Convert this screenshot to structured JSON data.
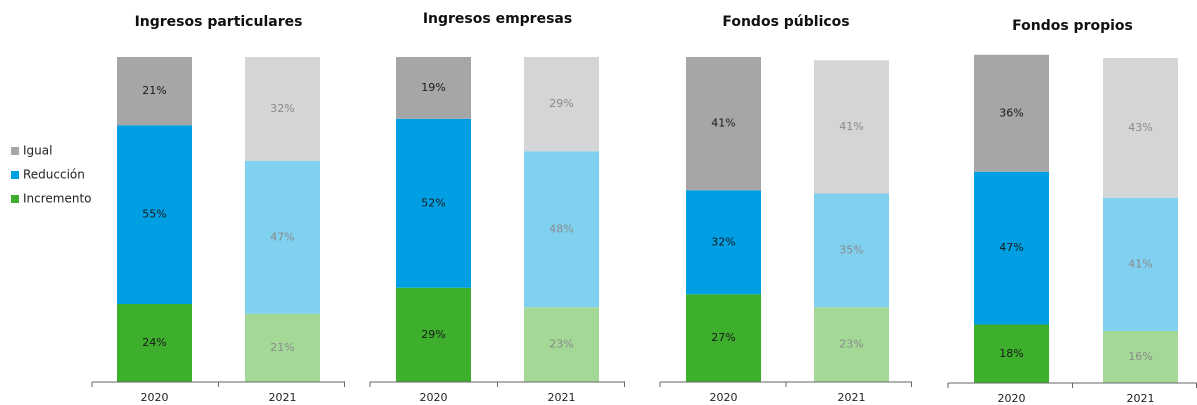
{
  "chart_data": [
    {
      "type": "stacked_bar",
      "title": "Ingresos particulares",
      "categories": [
        "2020",
        "2021"
      ],
      "series": [
        {
          "name": "Incremento",
          "colors": [
            "#3daf2c",
            "#a3d897"
          ],
          "values": [
            24,
            21
          ],
          "value_labels": [
            "24%",
            "21%"
          ]
        },
        {
          "name": "Reducción",
          "colors": [
            "#009fe3",
            "#80d0ef"
          ],
          "values": [
            55,
            47
          ],
          "value_labels": [
            "55%",
            "47%"
          ]
        },
        {
          "name": "Igual",
          "colors": [
            "#a6a6a6",
            "#d4d5d7"
          ],
          "values": [
            21,
            32
          ],
          "value_labels": [
            "21%",
            "32%"
          ]
        }
      ],
      "label_colors": [
        "#1a1a1a",
        "#8a8a8a"
      ],
      "legend": "left"
    },
    {
      "type": "stacked_bar",
      "title": "Ingresos empresas",
      "categories": [
        "2020",
        "2021"
      ],
      "series": [
        {
          "name": "Incremento",
          "colors": [
            "#3daf2c",
            "#a3d897"
          ],
          "values": [
            29,
            23
          ],
          "value_labels": [
            "29%",
            "23%"
          ]
        },
        {
          "name": "Reducción",
          "colors": [
            "#009fe3",
            "#80d0ef"
          ],
          "values": [
            52,
            48
          ],
          "value_labels": [
            "52%",
            "48%"
          ]
        },
        {
          "name": "Igual",
          "colors": [
            "#a6a6a6",
            "#d4d5d7"
          ],
          "values": [
            19,
            29
          ],
          "value_labels": [
            "19%",
            "29%"
          ]
        }
      ],
      "label_colors": [
        "#1a1a1a",
        "#8a8a8a"
      ]
    },
    {
      "type": "stacked_bar",
      "title": "Fondos públicos",
      "categories": [
        "2020",
        "2021"
      ],
      "series": [
        {
          "name": "Incremento",
          "colors": [
            "#3daf2c",
            "#a3d897"
          ],
          "values": [
            27,
            23
          ],
          "value_labels": [
            "27%",
            "23%"
          ]
        },
        {
          "name": "Reducción",
          "colors": [
            "#009fe3",
            "#80d0ef"
          ],
          "values": [
            32,
            35
          ],
          "value_labels": [
            "32%",
            "35%"
          ]
        },
        {
          "name": "Igual",
          "colors": [
            "#a6a6a6",
            "#d4d5d7"
          ],
          "values": [
            41,
            41
          ],
          "value_labels": [
            "41%",
            "41%"
          ]
        }
      ],
      "label_colors": [
        "#1a1a1a",
        "#8a8a8a"
      ]
    },
    {
      "type": "stacked_bar",
      "title": "Fondos propios",
      "categories": [
        "2020",
        "2021"
      ],
      "series": [
        {
          "name": "Incremento",
          "colors": [
            "#3daf2c",
            "#a3d897"
          ],
          "values": [
            18,
            16
          ],
          "value_labels": [
            "18%",
            "16%"
          ]
        },
        {
          "name": "Reducción",
          "colors": [
            "#009fe3",
            "#80d0ef"
          ],
          "values": [
            47,
            41
          ],
          "value_labels": [
            "47%",
            "41%"
          ]
        },
        {
          "name": "Igual",
          "colors": [
            "#a6a6a6",
            "#d4d5d7"
          ],
          "values": [
            36,
            43
          ],
          "value_labels": [
            "36%",
            "43%"
          ]
        }
      ],
      "label_colors": [
        "#1a1a1a",
        "#8a8a8a"
      ]
    }
  ]
}
